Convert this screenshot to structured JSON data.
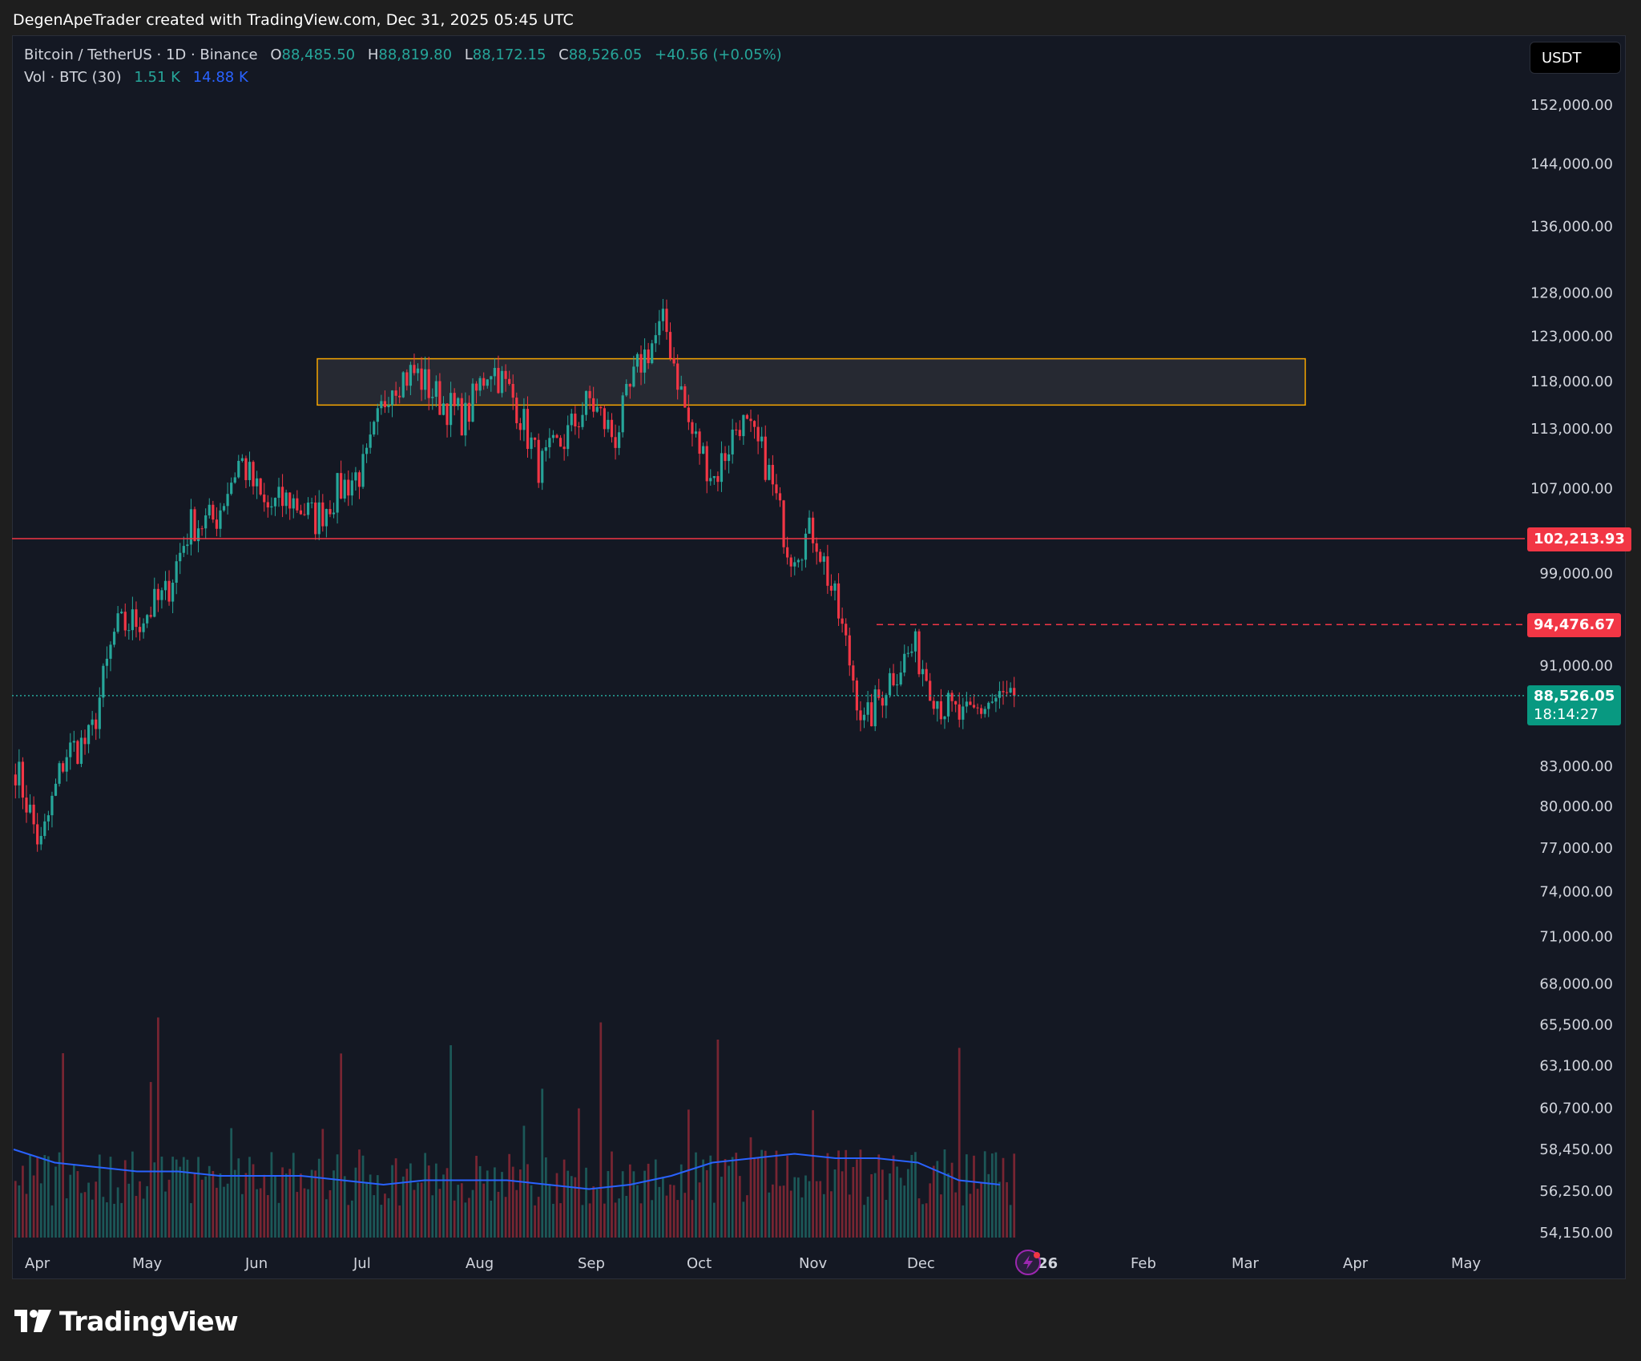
{
  "caption": "DegenApeTrader created with TradingView.com, Dec 31, 2025 05:45 UTC",
  "legend": {
    "symbol": "Bitcoin / TetherUS · 1D · Binance",
    "open_label": "O",
    "open": "88,485.50",
    "high_label": "H",
    "high": "88,819.80",
    "low_label": "L",
    "low": "88,172.15",
    "close_label": "C",
    "close": "88,526.05",
    "change": "+40.56 (+0.05%)",
    "volume_label": "Vol · BTC (30)",
    "volume_value": "1.51 K",
    "volume_ma": "14.88 K"
  },
  "currency_button": "USDT",
  "price_tags": {
    "resistance": "102,213.93",
    "dashed_level": "94,476.67",
    "last_price": "88,526.05",
    "countdown": "18:14:27"
  },
  "brand": "TradingView",
  "colors": {
    "up": "#26a69a",
    "down": "#f23645",
    "zone_border": "#f7a600",
    "volume_ma": "#2962ff",
    "background": "#141823"
  },
  "chart_data": {
    "type": "candlestick",
    "y_axis_ticks": [
      "152,000.00",
      "144,000.00",
      "136,000.00",
      "128,000.00",
      "123,000.00",
      "118,000.00",
      "113,000.00",
      "107,000.00",
      "99,000.00",
      "91,000.00",
      "83,000.00",
      "80,000.00",
      "77,000.00",
      "74,000.00",
      "71,000.00",
      "68,000.00",
      "65,500.00",
      "63,100.00",
      "60,700.00",
      "58,450.00",
      "56,250.00",
      "54,150.00"
    ],
    "y_scale": "log",
    "x_axis_ticks": [
      "Apr",
      "May",
      "Jun",
      "Jul",
      "Aug",
      "Sep",
      "Oct",
      "Nov",
      "Dec",
      "2026",
      "Feb",
      "Mar",
      "Apr",
      "May"
    ],
    "close_path": [
      {
        "x": "Apr",
        "y": 83000
      },
      {
        "x": "Apr",
        "y": 77000
      },
      {
        "x": "Apr",
        "y": 84000
      },
      {
        "x": "Apr",
        "y": 85000
      },
      {
        "x": "May",
        "y": 94000
      },
      {
        "x": "May",
        "y": 95000
      },
      {
        "x": "May",
        "y": 97000
      },
      {
        "x": "May",
        "y": 103500
      },
      {
        "x": "May",
        "y": 104000
      },
      {
        "x": "Jun",
        "y": 110000
      },
      {
        "x": "Jun",
        "y": 105000
      },
      {
        "x": "Jun",
        "y": 106000
      },
      {
        "x": "Jun",
        "y": 104000
      },
      {
        "x": "Jul",
        "y": 107000
      },
      {
        "x": "Jul",
        "y": 109000
      },
      {
        "x": "Jul",
        "y": 118000
      },
      {
        "x": "Jul",
        "y": 119000
      },
      {
        "x": "Aug",
        "y": 116000
      },
      {
        "x": "Aug",
        "y": 114000
      },
      {
        "x": "Aug",
        "y": 120000
      },
      {
        "x": "Aug",
        "y": 116000
      },
      {
        "x": "Sep",
        "y": 109000
      },
      {
        "x": "Sep",
        "y": 112000
      },
      {
        "x": "Sep",
        "y": 116000
      },
      {
        "x": "Sep",
        "y": 112000
      },
      {
        "x": "Oct",
        "y": 120000
      },
      {
        "x": "Oct",
        "y": 124500
      },
      {
        "x": "Oct",
        "y": 113000
      },
      {
        "x": "Oct",
        "y": 108000
      },
      {
        "x": "Oct",
        "y": 114000
      },
      {
        "x": "Nov",
        "y": 110000
      },
      {
        "x": "Nov",
        "y": 101000
      },
      {
        "x": "Nov",
        "y": 103000
      },
      {
        "x": "Nov",
        "y": 95000
      },
      {
        "x": "Nov",
        "y": 86000
      },
      {
        "x": "Dec",
        "y": 90000
      },
      {
        "x": "Dec",
        "y": 92500
      },
      {
        "x": "Dec",
        "y": 88000
      },
      {
        "x": "Dec",
        "y": 86500
      },
      {
        "x": "Dec",
        "y": 88000
      },
      {
        "x": "Dec",
        "y": 88526
      }
    ],
    "levels": [
      {
        "name": "resistance-line",
        "price": 102213.93,
        "style": "solid",
        "color": "#f23645"
      },
      {
        "name": "dashed-level",
        "price": 94476.67,
        "style": "dashed",
        "color": "#f23645"
      },
      {
        "name": "last-price-line",
        "price": 88526.05,
        "style": "dotted",
        "color": "#26a69a"
      }
    ],
    "zone": {
      "price_top": 120500,
      "price_bottom": 115500,
      "from": "Jul",
      "to": "Mar"
    },
    "volume_ma_path": [
      20,
      17,
      16,
      15,
      15,
      14,
      14,
      14,
      13,
      12,
      13,
      13,
      13,
      12,
      11,
      12,
      14,
      17,
      18,
      19,
      18,
      18,
      17,
      13,
      12
    ]
  }
}
